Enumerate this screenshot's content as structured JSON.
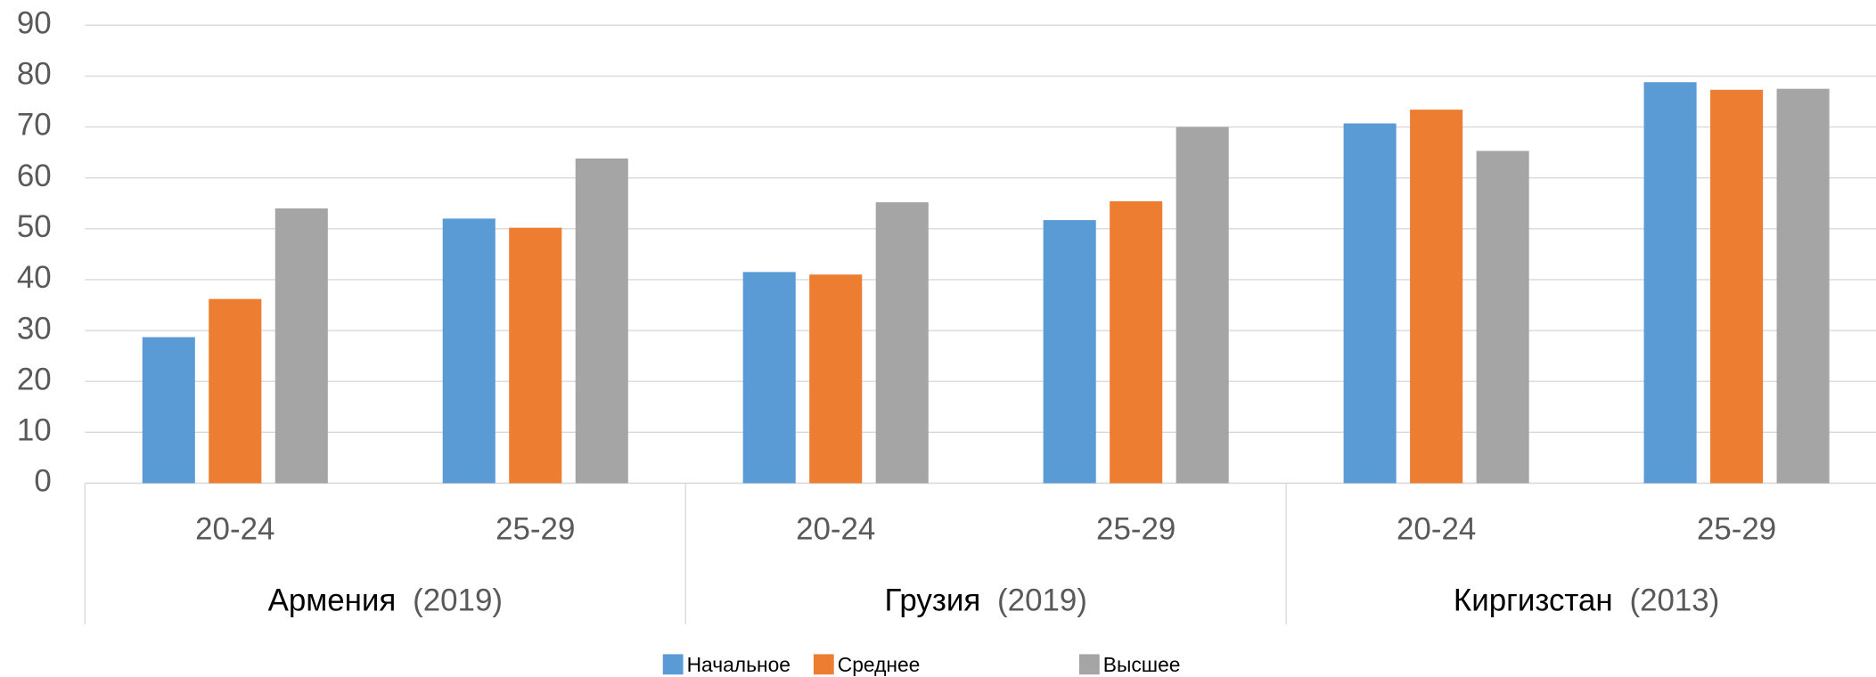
{
  "chart_data": {
    "type": "bar",
    "categories": [
      "20-24",
      "25-29",
      "20-24",
      "25-29",
      "20-24",
      "25-29"
    ],
    "groups": [
      {
        "name": "Армения",
        "note": "(2019)"
      },
      {
        "name": "Грузия",
        "note": "(2019)"
      },
      {
        "name": "Киргизстан",
        "note": "(2013)"
      }
    ],
    "series": [
      {
        "name": "Начальное",
        "color": "#5b9bd5",
        "values": [
          28.7,
          52,
          41.5,
          51.7,
          70.7,
          78.8
        ]
      },
      {
        "name": "Среднее",
        "color": "#ed7d31",
        "values": [
          36.2,
          50.2,
          41,
          55.4,
          73.4,
          77.3
        ]
      },
      {
        "name": "Высшее",
        "color": "#a5a5a5",
        "values": [
          54,
          63.8,
          55.2,
          70,
          65.3,
          77.5
        ]
      }
    ],
    "ylim": [
      0,
      90
    ],
    "yticks": [
      0,
      10,
      20,
      30,
      40,
      50,
      60,
      70,
      80,
      90
    ],
    "grid": true,
    "legend": "bottom"
  }
}
